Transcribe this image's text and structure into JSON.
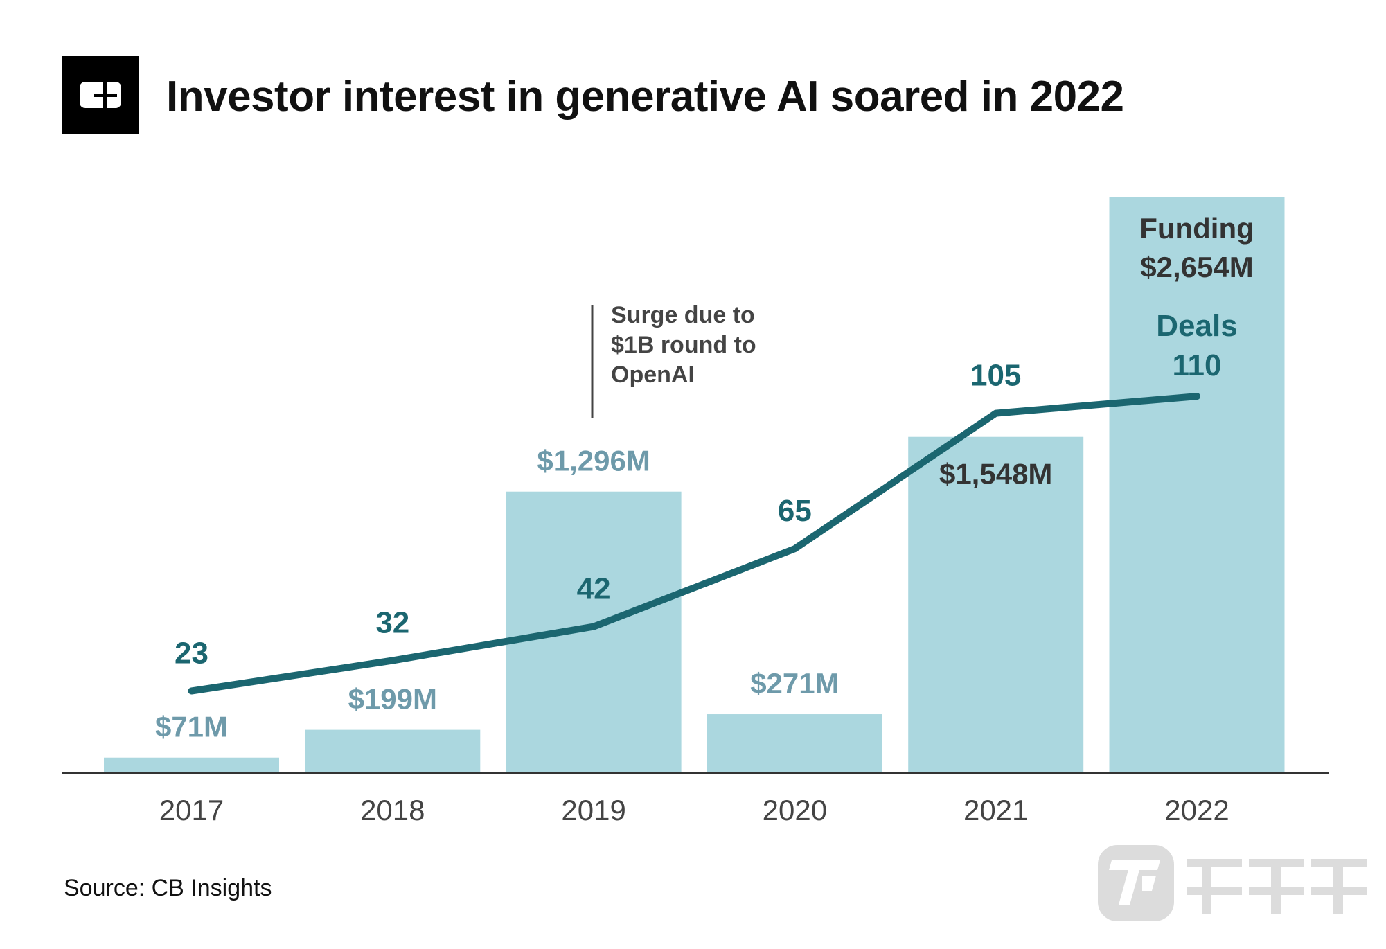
{
  "header": {
    "title": "Investor interest in generative AI soared in 2022",
    "logo_text": "CB"
  },
  "chart_data": {
    "type": "bar+line",
    "title": "Investor interest in generative AI soared in 2022",
    "categories": [
      "2017",
      "2018",
      "2019",
      "2020",
      "2021",
      "2022"
    ],
    "series": [
      {
        "name": "Funding",
        "type": "bar",
        "unit": "$M",
        "values": [
          71,
          199,
          1296,
          271,
          1548,
          2654
        ],
        "labels": [
          "$71M",
          "$199M",
          "$1,296M",
          "$271M",
          "$1,548M",
          "$2,654M"
        ]
      },
      {
        "name": "Deals",
        "type": "line",
        "values": [
          23,
          32,
          42,
          65,
          105,
          110
        ],
        "labels": [
          "23",
          "32",
          "42",
          "65",
          "105",
          "110"
        ]
      }
    ],
    "legend": {
      "funding_label": "Funding",
      "deals_label": "Deals"
    },
    "annotation": {
      "category": "2019",
      "lines": [
        "Surge due to",
        "$1B round to",
        "OpenAI"
      ]
    },
    "colors": {
      "bar": "#abd7df",
      "line": "#1b6670",
      "funding_label_outside": "#6e9aaa",
      "funding_label_inside": "#333333",
      "deals_label": "#1b6670",
      "axis": "#333333"
    },
    "ylim_funding": [
      0,
      2654
    ],
    "grid": false
  },
  "footer": {
    "source": "Source: CB Insights"
  },
  "watermark": {
    "text": "钛媒体"
  }
}
